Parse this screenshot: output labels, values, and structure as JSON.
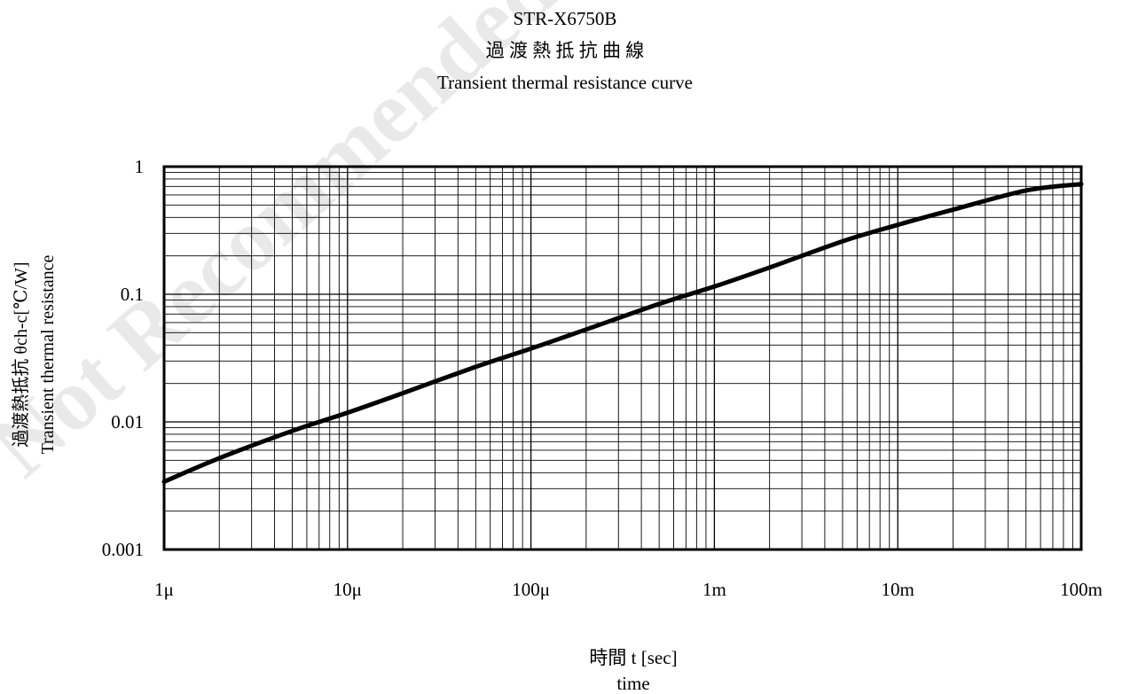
{
  "watermark": "Not Recommended",
  "chart_data": {
    "type": "line",
    "title": "STR-X6750B",
    "subtitle_jp": "過 渡 熱 抵 抗 曲 線",
    "subtitle": "Transient thermal resistance curve",
    "ylabel_jp": "過渡熱抵抗 θch-c[℃/W]",
    "ylabel": "Transient thermal resistance",
    "xlabel_jp": "時間 t [sec]",
    "xlabel": "time",
    "xscale": "log",
    "yscale": "log",
    "xlim": [
      1e-06,
      0.1
    ],
    "ylim": [
      0.001,
      1
    ],
    "grid": true,
    "x_tick_labels": [
      {
        "value": 1e-06,
        "label": "1μ"
      },
      {
        "value": 1e-05,
        "label": "10μ"
      },
      {
        "value": 0.0001,
        "label": "100μ"
      },
      {
        "value": 0.001,
        "label": "1m"
      },
      {
        "value": 0.01,
        "label": "10m"
      },
      {
        "value": 0.1,
        "label": "100m"
      }
    ],
    "y_tick_labels": [
      {
        "value": 0.001,
        "label": "0.001"
      },
      {
        "value": 0.01,
        "label": "0.01"
      },
      {
        "value": 0.1,
        "label": "0.1"
      },
      {
        "value": 1,
        "label": "1"
      }
    ],
    "series": [
      {
        "color": "#000000",
        "x": [
          1e-06,
          2e-06,
          5e-06,
          1e-05,
          2e-05,
          5e-05,
          0.0001,
          0.0002,
          0.0005,
          0.001,
          0.002,
          0.005,
          0.01,
          0.02,
          0.05,
          0.1
        ],
        "y": [
          0.0034,
          0.0052,
          0.0085,
          0.0118,
          0.0168,
          0.027,
          0.0375,
          0.053,
          0.084,
          0.115,
          0.162,
          0.26,
          0.35,
          0.46,
          0.65,
          0.73
        ]
      }
    ]
  }
}
